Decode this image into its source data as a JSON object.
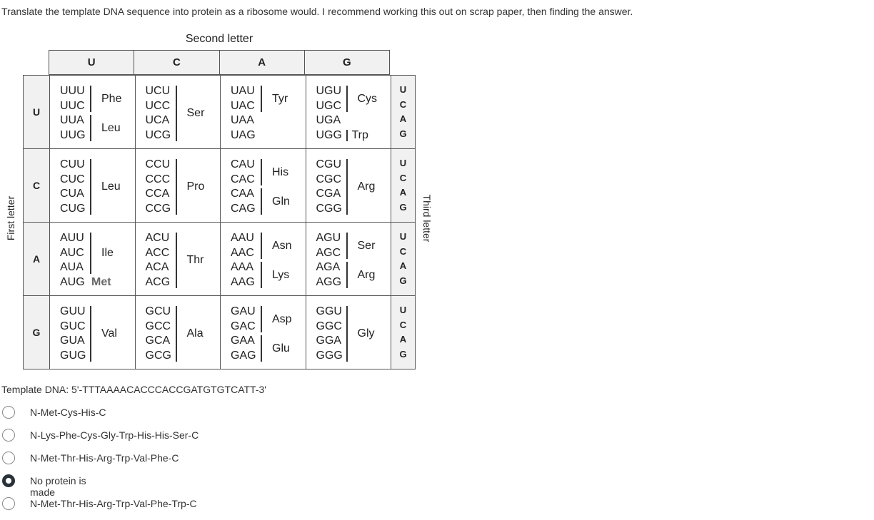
{
  "question": "Translate the template DNA sequence into protein as a ribosome would. I recommend working this out on scrap paper, then finding the answer.",
  "table": {
    "second_letter_label": "Second letter",
    "first_letter_label": "First letter",
    "third_letter_label": "Third letter",
    "second_letters": [
      "U",
      "C",
      "A",
      "G"
    ],
    "first_letters": [
      "U",
      "C",
      "A",
      "G"
    ],
    "third_letters": [
      "U",
      "C",
      "A",
      "G"
    ],
    "rows": [
      {
        "cells": [
          {
            "codons": [
              "UUU",
              "UUC",
              "UUA",
              "UUG"
            ],
            "groups": [
              {
                "aa": "Phe",
                "from": 0,
                "to": 1
              },
              {
                "aa": "Leu",
                "from": 2,
                "to": 3
              }
            ]
          },
          {
            "codons": [
              "UCU",
              "UCC",
              "UCA",
              "UCG"
            ],
            "groups": [
              {
                "aa": "Ser",
                "from": 0,
                "to": 3
              }
            ]
          },
          {
            "codons": [
              "UAU",
              "UAC",
              "UAA",
              "UAG"
            ],
            "groups": [
              {
                "aa": "Tyr",
                "from": 0,
                "to": 1
              }
            ]
          },
          {
            "codons": [
              "UGU",
              "UGC",
              "UGA",
              "UGG"
            ],
            "groups": [
              {
                "aa": "Cys",
                "from": 0,
                "to": 1
              },
              {
                "aa": "Trp",
                "from": 3,
                "to": 3
              }
            ]
          }
        ]
      },
      {
        "cells": [
          {
            "codons": [
              "CUU",
              "CUC",
              "CUA",
              "CUG"
            ],
            "groups": [
              {
                "aa": "Leu",
                "from": 0,
                "to": 3
              }
            ]
          },
          {
            "codons": [
              "CCU",
              "CCC",
              "CCA",
              "CCG"
            ],
            "groups": [
              {
                "aa": "Pro",
                "from": 0,
                "to": 3
              }
            ]
          },
          {
            "codons": [
              "CAU",
              "CAC",
              "CAA",
              "CAG"
            ],
            "groups": [
              {
                "aa": "His",
                "from": 0,
                "to": 1
              },
              {
                "aa": "Gln",
                "from": 2,
                "to": 3
              }
            ]
          },
          {
            "codons": [
              "CGU",
              "CGC",
              "CGA",
              "CGG"
            ],
            "groups": [
              {
                "aa": "Arg",
                "from": 0,
                "to": 3
              }
            ]
          }
        ]
      },
      {
        "cells": [
          {
            "codons": [
              "AUU",
              "AUC",
              "AUA",
              "AUG"
            ],
            "groups": [
              {
                "aa": "Ile",
                "from": 0,
                "to": 2
              },
              {
                "aa": "Met",
                "from": 3,
                "to": 3,
                "nobar": true
              }
            ]
          },
          {
            "codons": [
              "ACU",
              "ACC",
              "ACA",
              "ACG"
            ],
            "groups": [
              {
                "aa": "Thr",
                "from": 0,
                "to": 3
              }
            ]
          },
          {
            "codons": [
              "AAU",
              "AAC",
              "AAA",
              "AAG"
            ],
            "groups": [
              {
                "aa": "Asn",
                "from": 0,
                "to": 1
              },
              {
                "aa": "Lys",
                "from": 2,
                "to": 3
              }
            ]
          },
          {
            "codons": [
              "AGU",
              "AGC",
              "AGA",
              "AGG"
            ],
            "groups": [
              {
                "aa": "Ser",
                "from": 0,
                "to": 1
              },
              {
                "aa": "Arg",
                "from": 2,
                "to": 3
              }
            ]
          }
        ]
      },
      {
        "cells": [
          {
            "codons": [
              "GUU",
              "GUC",
              "GUA",
              "GUG"
            ],
            "groups": [
              {
                "aa": "Val",
                "from": 0,
                "to": 3
              }
            ]
          },
          {
            "codons": [
              "GCU",
              "GCC",
              "GCA",
              "GCG"
            ],
            "groups": [
              {
                "aa": "Ala",
                "from": 0,
                "to": 3
              }
            ]
          },
          {
            "codons": [
              "GAU",
              "GAC",
              "GAA",
              "GAG"
            ],
            "groups": [
              {
                "aa": "Asp",
                "from": 0,
                "to": 1
              },
              {
                "aa": "Glu",
                "from": 2,
                "to": 3
              }
            ]
          },
          {
            "codons": [
              "GGU",
              "GGC",
              "GGA",
              "GGG"
            ],
            "groups": [
              {
                "aa": "Gly",
                "from": 0,
                "to": 3
              }
            ]
          }
        ]
      }
    ]
  },
  "template_dna": "Template DNA: 5'-TTTAAAACACCCACCGATGTGTCATT-3'",
  "options": [
    {
      "label": "N-Met-Cys-His-C",
      "selected": false
    },
    {
      "label": "N-Lys-Phe-Cys-Gly-Trp-His-His-Ser-C",
      "selected": false
    },
    {
      "label": "N-Met-Thr-His-Arg-Trp-Val-Phe-C",
      "selected": false
    },
    {
      "label": "No protein is made",
      "selected": true
    },
    {
      "label": "N-Met-Thr-His-Arg-Trp-Val-Phe-Trp-C",
      "selected": false
    }
  ]
}
